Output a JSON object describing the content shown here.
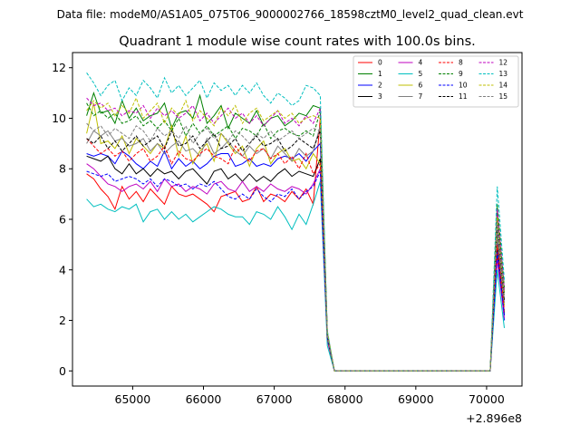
{
  "header": {
    "suptitle": "Data file: modeM0/AS1A05_075T06_9000002766_18598cztM0_level2_quad_clean.evt"
  },
  "chart_data": {
    "type": "line",
    "title": "Quadrant 1 module wise count rates with 100.0s bins.",
    "xlabel": "",
    "ylabel": "",
    "x_offset_label": "+2.896e8",
    "xlim": [
      64150,
      70500
    ],
    "ylim": [
      -0.6,
      12.6
    ],
    "x_ticks": [
      65000,
      66000,
      67000,
      68000,
      69000,
      70000
    ],
    "x_tick_labels": [
      "65000",
      "66000",
      "67000",
      "68000",
      "69000",
      "70000"
    ],
    "y_ticks": [
      0,
      2,
      4,
      6,
      8,
      10,
      12
    ],
    "y_tick_labels": [
      "0",
      "2",
      "4",
      "6",
      "8",
      "10",
      "12"
    ],
    "grid": false,
    "legend": {
      "placement": "top-right",
      "columns": 4
    },
    "x": [
      64350,
      64450,
      64550,
      64650,
      64750,
      64850,
      64950,
      65050,
      65150,
      65250,
      65350,
      65450,
      65550,
      65650,
      65750,
      65850,
      65950,
      66050,
      66150,
      66250,
      66350,
      66450,
      66550,
      66650,
      66750,
      66850,
      66950,
      67050,
      67150,
      67250,
      67350,
      67450,
      67550,
      67650,
      67750,
      67850,
      67950,
      68050,
      68150,
      68250,
      68350,
      68450,
      68550,
      68650,
      68750,
      68850,
      68950,
      69050,
      69150,
      69250,
      69350,
      69450,
      69550,
      69650,
      69750,
      69850,
      69950,
      70050,
      70150,
      70250
    ],
    "series": [
      {
        "name": "0",
        "color": "#ff0000",
        "dash": "solid",
        "values": [
          7.8,
          7.6,
          7.2,
          6.9,
          6.4,
          7.3,
          6.8,
          7.1,
          6.7,
          7.2,
          6.9,
          6.6,
          7.3,
          7.0,
          6.9,
          7.0,
          6.8,
          6.6,
          6.3,
          6.9,
          7.0,
          7.1,
          6.7,
          6.8,
          7.3,
          6.7,
          7.0,
          6.9,
          6.7,
          7.1,
          6.8,
          7.2,
          6.6,
          10.0,
          1.5,
          0,
          0,
          0,
          0,
          0,
          0,
          0,
          0,
          0,
          0,
          0,
          0,
          0,
          0,
          0,
          0,
          0,
          0,
          0,
          0,
          0,
          0,
          0,
          4.6,
          2.3
        ]
      },
      {
        "name": "1",
        "color": "#008000",
        "dash": "solid",
        "values": [
          10.1,
          11.0,
          10.2,
          10.3,
          9.8,
          10.7,
          10.0,
          10.4,
          9.9,
          10.1,
          10.2,
          10.6,
          9.6,
          10.2,
          10.3,
          10.0,
          10.9,
          9.8,
          10.1,
          10.5,
          9.6,
          10.2,
          10.0,
          9.8,
          10.3,
          9.7,
          10.0,
          10.1,
          9.7,
          9.9,
          10.2,
          10.1,
          10.5,
          10.4,
          1.5,
          0,
          0,
          0,
          0,
          0,
          0,
          0,
          0,
          0,
          0,
          0,
          0,
          0,
          0,
          0,
          0,
          0,
          0,
          0,
          0,
          0,
          0,
          0,
          6.2,
          3.1
        ]
      },
      {
        "name": "2",
        "color": "#0000ff",
        "dash": "solid",
        "values": [
          8.6,
          8.5,
          8.6,
          8.5,
          8.2,
          8.7,
          8.5,
          8.2,
          8.0,
          8.3,
          8.1,
          8.7,
          8.0,
          8.4,
          8.1,
          8.3,
          8.0,
          8.2,
          8.5,
          8.6,
          8.6,
          8.1,
          8.2,
          8.4,
          8.1,
          8.2,
          8.1,
          8.4,
          8.5,
          8.4,
          8.6,
          8.3,
          8.7,
          9.0,
          1.4,
          0,
          0,
          0,
          0,
          0,
          0,
          0,
          0,
          0,
          0,
          0,
          0,
          0,
          0,
          0,
          0,
          0,
          0,
          0,
          0,
          0,
          0,
          0,
          5.1,
          2.0
        ]
      },
      {
        "name": "3",
        "color": "#000000",
        "dash": "solid",
        "values": [
          8.5,
          8.4,
          8.3,
          8.5,
          8.0,
          7.8,
          8.2,
          7.8,
          8.0,
          7.7,
          8.0,
          7.8,
          7.9,
          7.6,
          7.9,
          8.0,
          7.7,
          7.4,
          7.9,
          8.0,
          7.6,
          7.8,
          7.5,
          7.8,
          7.5,
          7.7,
          7.5,
          7.8,
          8.0,
          7.7,
          7.9,
          7.8,
          7.7,
          8.4,
          1.3,
          0,
          0,
          0,
          0,
          0,
          0,
          0,
          0,
          0,
          0,
          0,
          0,
          0,
          0,
          0,
          0,
          0,
          0,
          0,
          0,
          0,
          0,
          0,
          4.9,
          2.2
        ]
      },
      {
        "name": "4",
        "color": "#bf00bf",
        "dash": "solid",
        "values": [
          8.2,
          8.0,
          7.7,
          7.4,
          7.3,
          7.1,
          7.3,
          7.4,
          7.2,
          7.5,
          7.1,
          7.6,
          7.3,
          7.4,
          7.1,
          7.3,
          7.2,
          7.0,
          7.4,
          7.5,
          7.2,
          7.1,
          7.5,
          7.1,
          7.3,
          7.1,
          7.4,
          7.2,
          7.1,
          7.3,
          7.2,
          7.0,
          7.4,
          8.0,
          1.2,
          0,
          0,
          0,
          0,
          0,
          0,
          0,
          0,
          0,
          0,
          0,
          0,
          0,
          0,
          0,
          0,
          0,
          0,
          0,
          0,
          0,
          0,
          0,
          4.4,
          2.1
        ]
      },
      {
        "name": "5",
        "color": "#00bfbf",
        "dash": "solid",
        "values": [
          6.8,
          6.5,
          6.6,
          6.4,
          6.3,
          6.5,
          6.4,
          6.6,
          5.9,
          6.3,
          6.4,
          6.0,
          6.3,
          6.0,
          6.2,
          5.9,
          6.1,
          6.3,
          6.5,
          6.4,
          6.2,
          6.1,
          6.1,
          5.8,
          6.3,
          6.2,
          6.0,
          6.5,
          6.1,
          5.6,
          6.2,
          5.8,
          6.6,
          7.5,
          1.0,
          0,
          0,
          0,
          0,
          0,
          0,
          0,
          0,
          0,
          0,
          0,
          0,
          0,
          0,
          0,
          0,
          0,
          0,
          0,
          0,
          0,
          0,
          0,
          4.0,
          1.7
        ]
      },
      {
        "name": "6",
        "color": "#bfbf00",
        "dash": "solid",
        "values": [
          9.4,
          10.6,
          9.0,
          9.1,
          8.8,
          9.3,
          8.6,
          9.2,
          8.9,
          8.6,
          9.0,
          8.8,
          9.7,
          8.5,
          9.3,
          8.2,
          8.7,
          9.0,
          8.3,
          9.4,
          9.0,
          8.6,
          8.9,
          8.1,
          8.8,
          9.1,
          8.2,
          8.6,
          8.8,
          8.3,
          8.4,
          8.0,
          8.6,
          8.2,
          1.3,
          0,
          0,
          0,
          0,
          0,
          0,
          0,
          0,
          0,
          0,
          0,
          0,
          0,
          0,
          0,
          0,
          0,
          0,
          0,
          0,
          0,
          0,
          0,
          5.4,
          2.6
        ]
      },
      {
        "name": "7",
        "color": "#808080",
        "dash": "solid",
        "values": [
          9.0,
          9.5,
          9.3,
          9.5,
          9.1,
          9.2,
          8.9,
          9.0,
          9.2,
          8.7,
          9.0,
          8.6,
          8.9,
          9.1,
          8.7,
          8.8,
          8.5,
          9.2,
          8.6,
          8.8,
          9.1,
          8.7,
          8.5,
          8.9,
          8.6,
          8.8,
          8.4,
          8.9,
          8.6,
          8.3,
          8.8,
          8.5,
          8.7,
          9.7,
          1.5,
          0,
          0,
          0,
          0,
          0,
          0,
          0,
          0,
          0,
          0,
          0,
          0,
          0,
          0,
          0,
          0,
          0,
          0,
          0,
          0,
          0,
          0,
          0,
          5.5,
          2.7
        ]
      },
      {
        "name": "8",
        "color": "#ff0000",
        "dash": "dashed",
        "values": [
          9.2,
          8.9,
          8.6,
          8.8,
          8.5,
          8.7,
          8.3,
          8.6,
          8.8,
          8.3,
          8.5,
          8.9,
          8.2,
          8.7,
          8.4,
          8.3,
          8.6,
          8.8,
          8.5,
          8.4,
          8.2,
          8.9,
          8.5,
          8.3,
          8.7,
          8.8,
          8.4,
          8.6,
          8.2,
          8.5,
          8.0,
          8.6,
          7.8,
          8.2,
          1.3,
          0,
          0,
          0,
          0,
          0,
          0,
          0,
          0,
          0,
          0,
          0,
          0,
          0,
          0,
          0,
          0,
          0,
          0,
          0,
          0,
          0,
          0,
          0,
          5.0,
          2.4
        ]
      },
      {
        "name": "9",
        "color": "#008000",
        "dash": "dashed",
        "values": [
          10.6,
          10.1,
          10.3,
          10.0,
          10.2,
          9.8,
          9.9,
          10.1,
          9.7,
          9.9,
          9.6,
          9.9,
          9.5,
          10.0,
          9.3,
          9.8,
          9.4,
          9.7,
          9.3,
          9.5,
          9.7,
          9.2,
          9.6,
          9.5,
          9.3,
          9.8,
          9.2,
          9.5,
          9.6,
          9.4,
          9.3,
          9.5,
          9.3,
          10.3,
          1.5,
          0,
          0,
          0,
          0,
          0,
          0,
          0,
          0,
          0,
          0,
          0,
          0,
          0,
          0,
          0,
          0,
          0,
          0,
          0,
          0,
          0,
          0,
          0,
          6.6,
          3.3
        ]
      },
      {
        "name": "10",
        "color": "#0000ff",
        "dash": "dashed",
        "values": [
          7.9,
          7.8,
          7.7,
          7.8,
          7.5,
          7.6,
          7.7,
          7.6,
          7.4,
          7.6,
          7.3,
          7.6,
          7.5,
          7.3,
          7.4,
          7.2,
          7.4,
          7.3,
          7.5,
          7.2,
          6.9,
          6.8,
          7.0,
          6.8,
          7.2,
          6.9,
          6.7,
          7.0,
          6.9,
          7.2,
          6.8,
          7.1,
          7.3,
          7.9,
          1.3,
          0,
          0,
          0,
          0,
          0,
          0,
          0,
          0,
          0,
          0,
          0,
          0,
          0,
          0,
          0,
          0,
          0,
          0,
          0,
          0,
          0,
          0,
          0,
          4.7,
          2.2
        ]
      },
      {
        "name": "11",
        "color": "#000000",
        "dash": "dashed",
        "values": [
          9.2,
          9.0,
          9.3,
          8.8,
          9.1,
          8.7,
          9.0,
          9.3,
          8.9,
          9.1,
          9.3,
          8.8,
          9.5,
          8.9,
          9.0,
          9.3,
          8.8,
          9.1,
          9.4,
          8.8,
          8.9,
          9.2,
          8.7,
          9.0,
          9.3,
          8.9,
          9.0,
          9.2,
          8.7,
          8.9,
          9.2,
          9.0,
          8.8,
          9.5,
          1.4,
          0,
          0,
          0,
          0,
          0,
          0,
          0,
          0,
          0,
          0,
          0,
          0,
          0,
          0,
          0,
          0,
          0,
          0,
          0,
          0,
          0,
          0,
          0,
          5.8,
          2.8
        ]
      },
      {
        "name": "12",
        "color": "#bf00bf",
        "dash": "dashed",
        "values": [
          10.8,
          10.5,
          10.6,
          10.3,
          10.4,
          10.1,
          10.3,
          10.2,
          10.5,
          10.0,
          10.4,
          10.1,
          10.3,
          10.0,
          10.2,
          10.5,
          9.9,
          10.2,
          9.8,
          10.1,
          10.4,
          10.0,
          10.2,
          9.8,
          10.1,
          9.7,
          10.0,
          10.3,
          9.8,
          10.0,
          9.7,
          10.1,
          9.8,
          10.4,
          1.5,
          0,
          0,
          0,
          0,
          0,
          0,
          0,
          0,
          0,
          0,
          0,
          0,
          0,
          0,
          0,
          0,
          0,
          0,
          0,
          0,
          0,
          0,
          0,
          6.4,
          3.2
        ]
      },
      {
        "name": "13",
        "color": "#00bfbf",
        "dash": "dashed",
        "values": [
          11.8,
          11.4,
          10.9,
          11.3,
          11.5,
          10.7,
          11.2,
          10.9,
          11.5,
          11.2,
          10.8,
          11.6,
          11.0,
          11.3,
          10.9,
          11.2,
          11.5,
          10.8,
          11.4,
          11.1,
          11.3,
          10.9,
          11.3,
          11.0,
          11.4,
          10.9,
          10.6,
          11.0,
          10.8,
          10.5,
          10.7,
          11.3,
          11.2,
          10.9,
          1.6,
          0,
          0,
          0,
          0,
          0,
          0,
          0,
          0,
          0,
          0,
          0,
          0,
          0,
          0,
          0,
          0,
          0,
          0,
          0,
          0,
          0,
          0,
          0,
          7.3,
          3.6
        ]
      },
      {
        "name": "14",
        "color": "#bfbf00",
        "dash": "dashed",
        "values": [
          10.3,
          10.7,
          10.4,
          10.6,
          10.1,
          10.5,
          10.2,
          10.8,
          10.0,
          10.3,
          10.6,
          9.8,
          10.4,
          10.1,
          10.7,
          9.9,
          10.3,
          10.0,
          9.7,
          10.4,
          10.1,
          10.5,
          9.8,
          10.2,
          10.4,
          9.9,
          10.1,
          10.3,
          10.0,
          10.2,
          9.8,
          10.0,
          10.1,
          10.0,
          1.5,
          0,
          0,
          0,
          0,
          0,
          0,
          0,
          0,
          0,
          0,
          0,
          0,
          0,
          0,
          0,
          0,
          0,
          0,
          0,
          0,
          0,
          0,
          0,
          6.1,
          3.0
        ]
      },
      {
        "name": "15",
        "color": "#808080",
        "dash": "dashed",
        "values": [
          9.8,
          9.5,
          9.7,
          9.3,
          9.6,
          9.4,
          9.2,
          9.7,
          9.5,
          9.1,
          9.6,
          9.3,
          9.5,
          9.2,
          9.7,
          9.0,
          9.4,
          9.6,
          9.2,
          9.4,
          9.1,
          9.5,
          9.3,
          9.0,
          9.4,
          9.2,
          9.5,
          9.1,
          9.3,
          9.5,
          9.2,
          9.4,
          9.6,
          9.5,
          1.4,
          0,
          0,
          0,
          0,
          0,
          0,
          0,
          0,
          0,
          0,
          0,
          0,
          0,
          0,
          0,
          0,
          0,
          0,
          0,
          0,
          0,
          0,
          0,
          5.9,
          2.9
        ]
      }
    ]
  }
}
